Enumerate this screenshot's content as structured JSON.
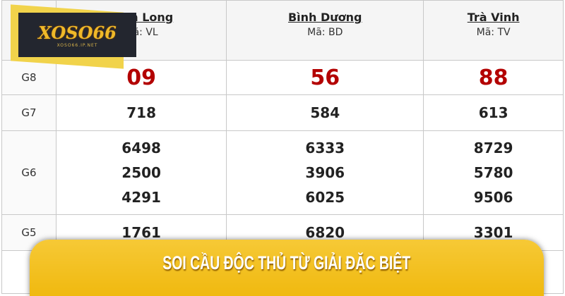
{
  "provinces": [
    {
      "name": "Vĩnh Long",
      "code": "Mã: VL"
    },
    {
      "name": "Bình Dương",
      "code": "Mã: BD"
    },
    {
      "name": "Trà Vinh",
      "code": "Mã: TV"
    }
  ],
  "rows": [
    {
      "label": "G8",
      "values": [
        [
          "09"
        ],
        [
          "56"
        ],
        [
          "88"
        ]
      ]
    },
    {
      "label": "G7",
      "values": [
        [
          "718"
        ],
        [
          "584"
        ],
        [
          "613"
        ]
      ]
    },
    {
      "label": "G6",
      "values": [
        [
          "6498",
          "2500",
          "4291"
        ],
        [
          "6333",
          "3906",
          "6025"
        ],
        [
          "8729",
          "5780",
          "9506"
        ]
      ]
    },
    {
      "label": "G5",
      "values": [
        [
          "1761"
        ],
        [
          "6820"
        ],
        [
          "3301"
        ]
      ]
    }
  ],
  "logo": {
    "text": "XOSO66",
    "subtext": "XOSO66.IP.NET"
  },
  "banner": "SOI CẦU ĐỘC THỦ TỪ GIẢI ĐẶC BIỆT",
  "colors": {
    "accent": "#f0b90f",
    "prize_red": "#b30000"
  }
}
